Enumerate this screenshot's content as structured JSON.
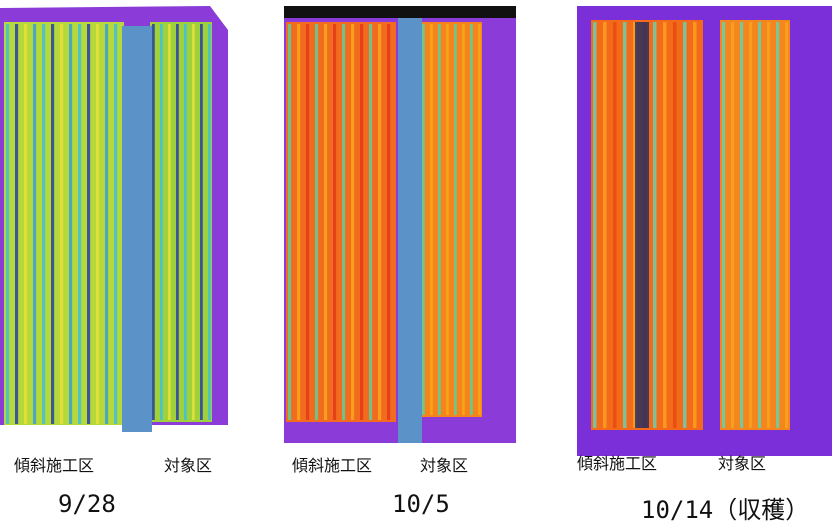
{
  "panels": [
    {
      "date": "9/28",
      "left_label": "傾斜施工区",
      "right_label": "対象区",
      "palette": {
        "base": "#8a3bd8",
        "strip_a": "#c8e63c",
        "strip_b": "#3fc0d8",
        "edge": "#2a3fa8",
        "mask": "#5b93c9"
      }
    },
    {
      "date": "10/5",
      "left_label": "傾斜施工区",
      "right_label": "対象区",
      "palette": {
        "base": "#8a3bd8",
        "strip_a": "#f05a1e",
        "strip_b": "#f7a81a",
        "edge": "#5fcf9a",
        "mask": "#5b93c9"
      }
    },
    {
      "date": "10/14（収穫）",
      "left_label": "傾斜施工区",
      "right_label": "対象区",
      "palette": {
        "base": "#7a2fd8",
        "strip_a": "#f06a1a",
        "strip_b": "#f9a020",
        "edge": "#66d0b0",
        "dark": "#0e2a6a"
      }
    }
  ]
}
